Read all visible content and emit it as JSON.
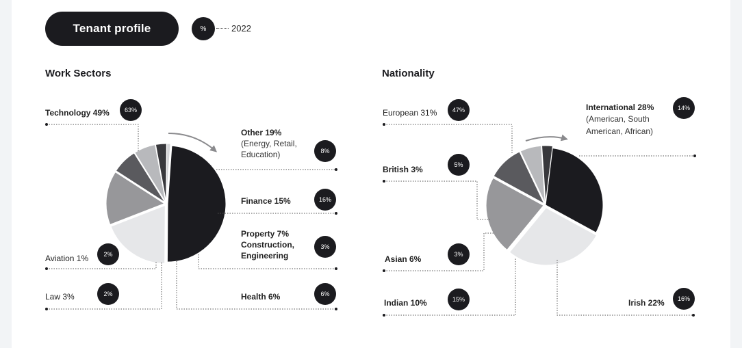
{
  "header": {
    "title": "Tenant profile",
    "legend_badge": "%",
    "legend_year": "2022"
  },
  "chart_data": [
    {
      "type": "pie",
      "title": "Work Sectors",
      "slices": [
        {
          "label": "Technology 49%",
          "value": 49,
          "badge": "63%",
          "color": "#1b1b1f"
        },
        {
          "label": "Other 19%",
          "sublabel": "(Energy, Retail, Education)",
          "value": 19,
          "badge": "8%",
          "color": "#e6e7e9"
        },
        {
          "label": "Finance 15%",
          "value": 15,
          "badge": "16%",
          "color": "#97979a"
        },
        {
          "label": "Property 7% Construction, Engineering",
          "value": 7,
          "badge": "3%",
          "color": "#5a5a5e"
        },
        {
          "label": "Health 6%",
          "value": 6,
          "badge": "6%",
          "color": "#b8b9bc"
        },
        {
          "label": "Law 3%",
          "value": 3,
          "badge": "2%",
          "color": "#38383c"
        },
        {
          "label": "Aviation 1%",
          "value": 1,
          "badge": "2%",
          "color": "#d4d5d8"
        }
      ]
    },
    {
      "type": "pie",
      "title": "Nationality",
      "slices": [
        {
          "label": "European 31%",
          "value": 31,
          "badge": "47%",
          "color": "#1b1b1f"
        },
        {
          "label": "International 28%",
          "sublabel": "(American, South American, African)",
          "value": 28,
          "badge": "14%",
          "color": "#e6e7e9"
        },
        {
          "label": "Irish 22%",
          "value": 22,
          "badge": "16%",
          "color": "#97979a"
        },
        {
          "label": "Indian 10%",
          "value": 10,
          "badge": "15%",
          "color": "#5a5a5e"
        },
        {
          "label": "Asian 6%",
          "value": 6,
          "badge": "3%",
          "color": "#b8b9bc"
        },
        {
          "label": "British 3%",
          "value": 3,
          "badge": "5%",
          "color": "#38383c"
        }
      ]
    }
  ]
}
